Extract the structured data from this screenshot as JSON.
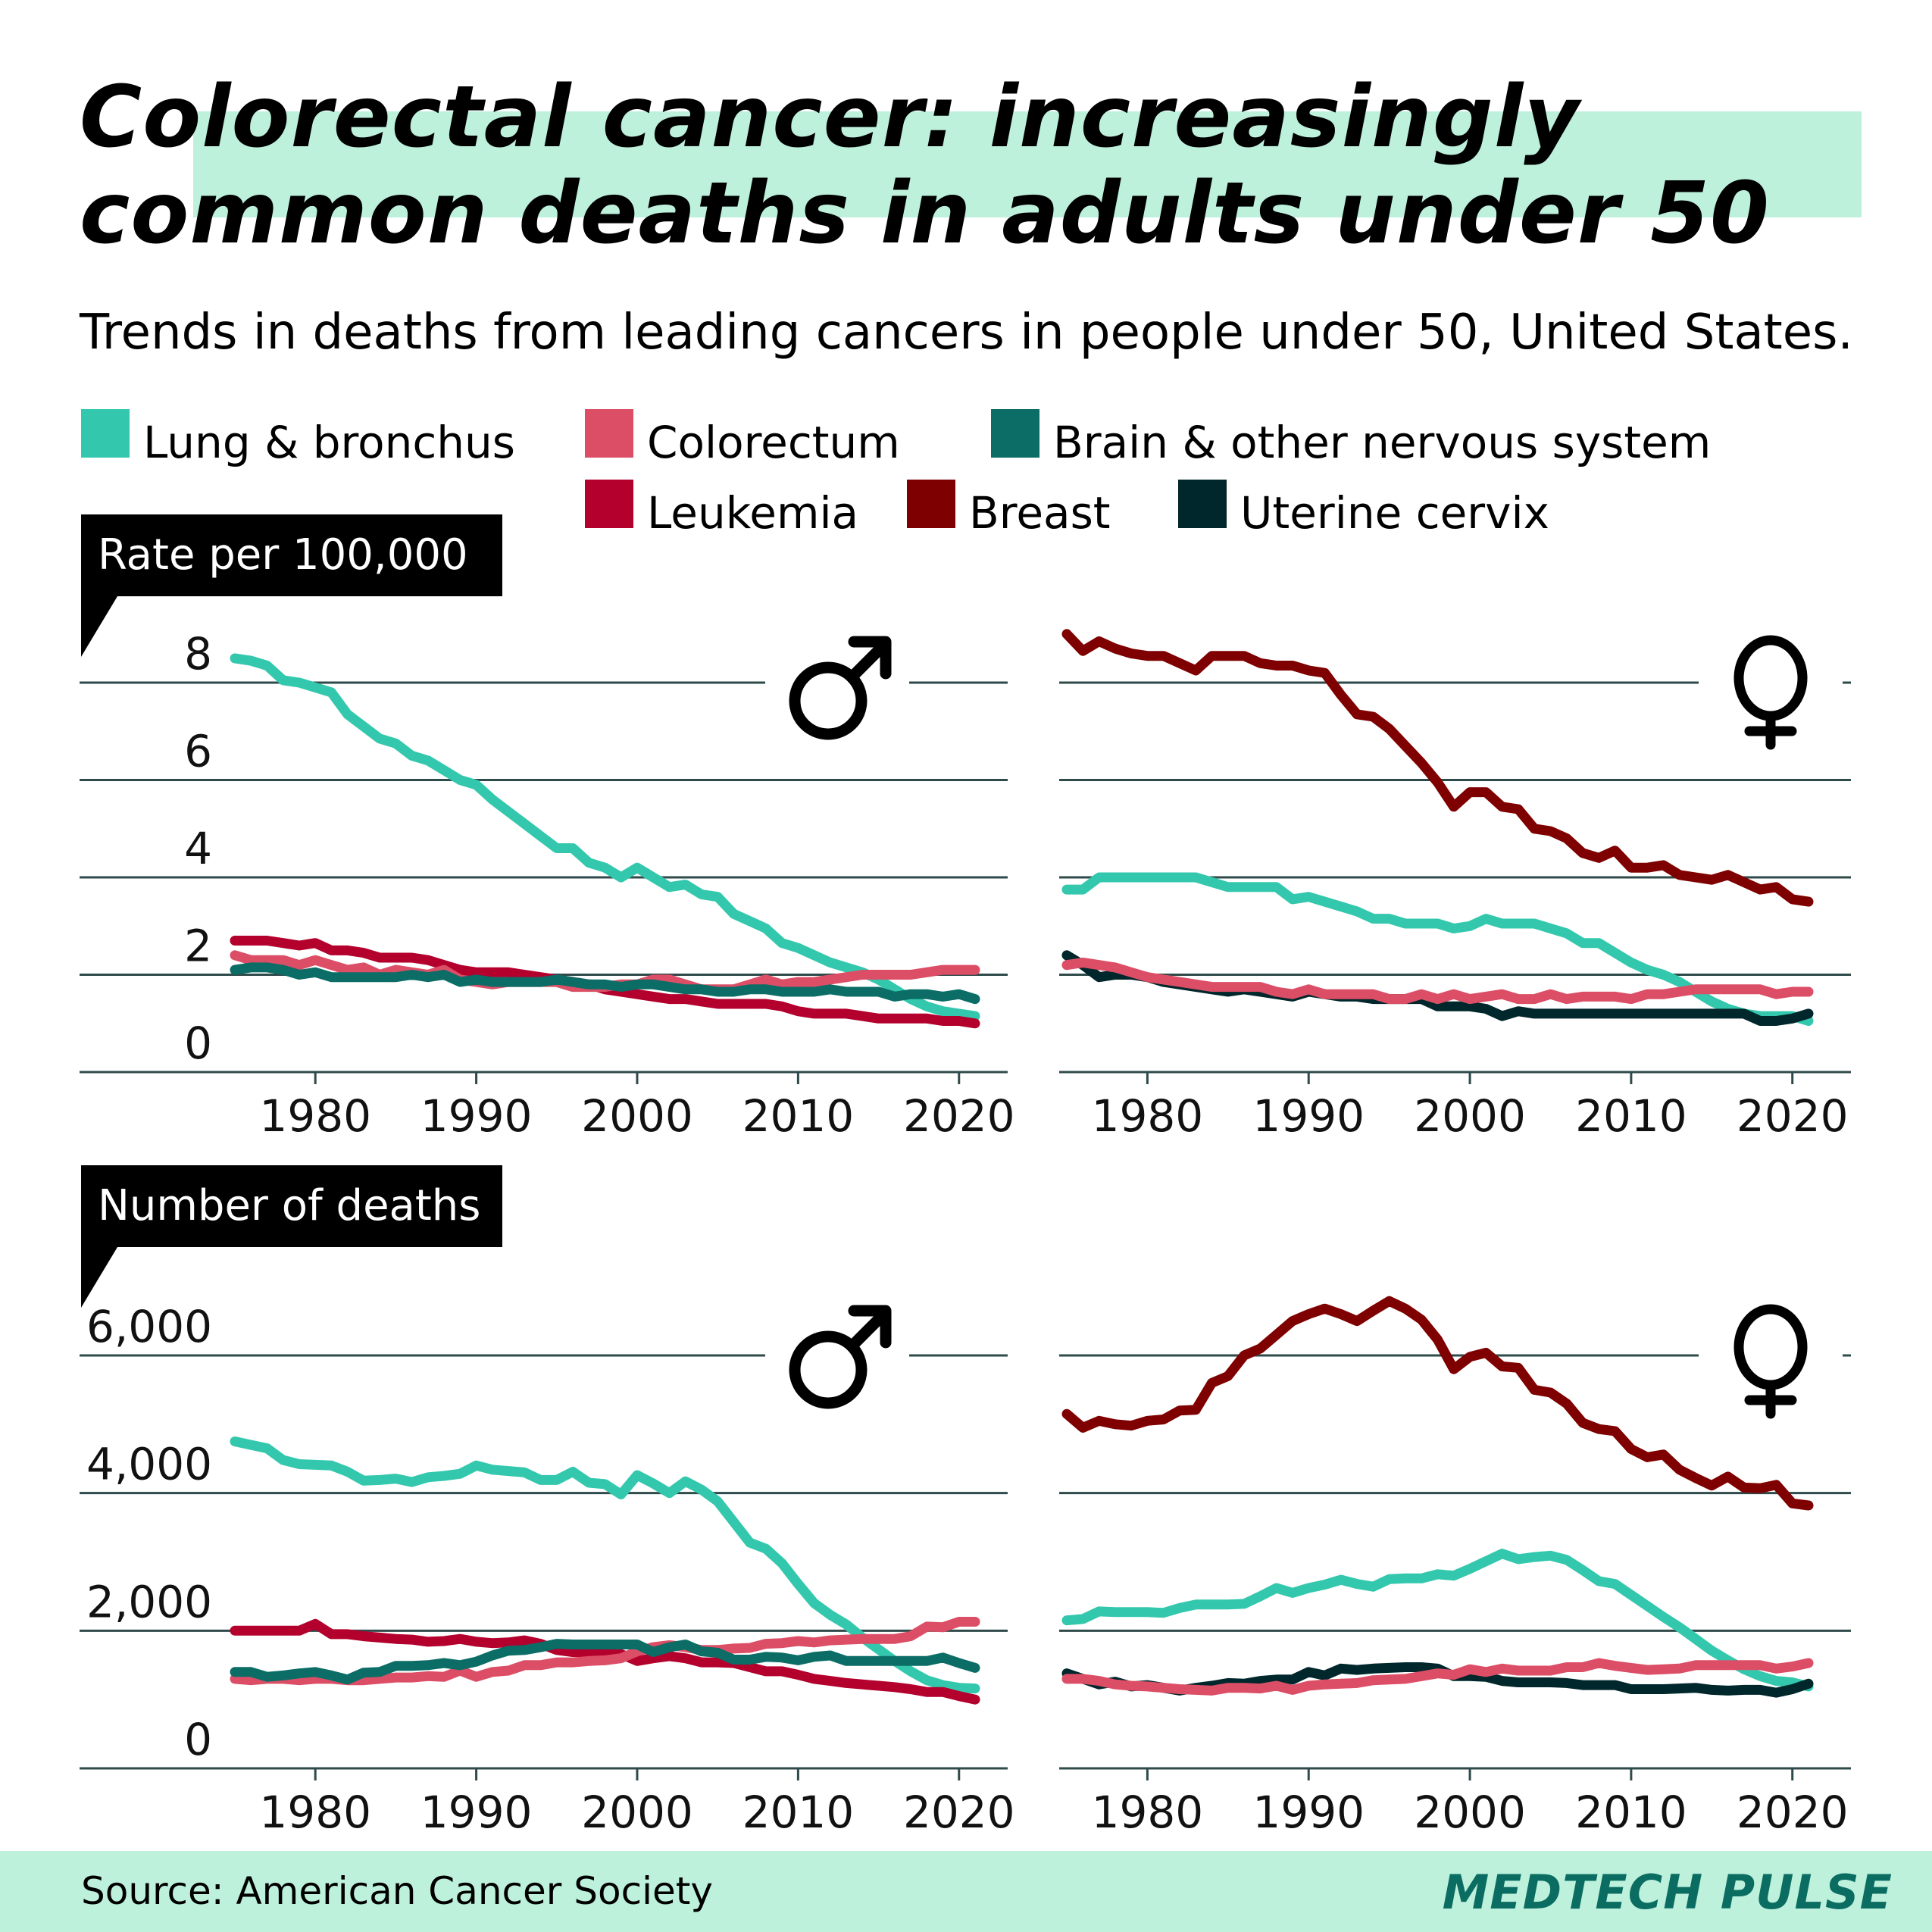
{
  "header": {
    "title_line1": "Colorectal cancer: increasingly",
    "title_line2": "common deaths in adults under 50",
    "subtitle": "Trends in deaths from leading cancers in people under 50, United States."
  },
  "legend": [
    {
      "label": "Lung & bronchus",
      "color": "#33c8ad"
    },
    {
      "label": "Colorectum",
      "color": "#dc4e66"
    },
    {
      "label": "Brain & other nervous system",
      "color": "#0b6d66"
    },
    {
      "label": "Leukemia",
      "color": "#b3002d"
    },
    {
      "label": "Breast",
      "color": "#7f0000"
    },
    {
      "label": "Uterine cervix",
      "color": "#00272b"
    }
  ],
  "colors": {
    "accent_band": "#bdf1dc",
    "gridline": "#2f4a4a",
    "brand": "#0b6d62"
  },
  "footer": {
    "source": "Source: American Cancer Society",
    "brand": "MEDTECH PULSE"
  },
  "panels": {
    "rate_label": "Rate per 100,000",
    "deaths_label": "Number of deaths",
    "male_symbol": "♂",
    "female_symbol": "♀"
  },
  "chart_data": [
    {
      "type": "line",
      "title": "Rate per 100,000 — Men",
      "ylabel": "Rate per 100,000",
      "x_ticks": [
        1980,
        1990,
        2000,
        2010,
        2020
      ],
      "y_ticks": [
        0,
        2,
        4,
        6,
        8
      ],
      "y_tick_labels": [
        "0",
        "2",
        "4",
        "6",
        "8"
      ],
      "xlim": [
        1975,
        2021
      ],
      "ylim": [
        0,
        8
      ],
      "grid": true,
      "start_year": 1975,
      "series": [
        {
          "name": "Lung & bronchus",
          "color": "#33c8ad",
          "values": [
            8.5,
            8.45,
            8.35,
            8.05,
            8.0,
            7.9,
            7.8,
            7.35,
            7.1,
            6.85,
            6.75,
            6.5,
            6.4,
            6.2,
            6.0,
            5.9,
            5.6,
            5.35,
            5.1,
            4.85,
            4.6,
            4.6,
            4.3,
            4.2,
            4.0,
            4.2,
            4.0,
            3.8,
            3.85,
            3.65,
            3.6,
            3.25,
            3.1,
            2.95,
            2.65,
            2.55,
            2.4,
            2.25,
            2.15,
            2.05,
            1.9,
            1.7,
            1.5,
            1.35,
            1.25,
            1.2,
            1.15
          ]
        },
        {
          "name": "Leukemia",
          "color": "#b3002d",
          "values": [
            2.7,
            2.7,
            2.7,
            2.65,
            2.6,
            2.65,
            2.5,
            2.5,
            2.45,
            2.35,
            2.35,
            2.35,
            2.3,
            2.2,
            2.1,
            2.05,
            2.05,
            2.05,
            2.0,
            1.95,
            1.9,
            1.85,
            1.8,
            1.7,
            1.65,
            1.6,
            1.55,
            1.5,
            1.5,
            1.45,
            1.4,
            1.4,
            1.4,
            1.4,
            1.35,
            1.25,
            1.2,
            1.2,
            1.2,
            1.15,
            1.1,
            1.1,
            1.1,
            1.1,
            1.05,
            1.05,
            1.0
          ]
        },
        {
          "name": "Colorectum",
          "color": "#dc4e66",
          "values": [
            2.4,
            2.3,
            2.3,
            2.3,
            2.2,
            2.3,
            2.2,
            2.1,
            2.15,
            2.0,
            2.1,
            2.05,
            2.0,
            2.1,
            1.9,
            1.85,
            1.8,
            1.85,
            1.85,
            1.85,
            1.85,
            1.75,
            1.75,
            1.75,
            1.8,
            1.8,
            1.9,
            1.9,
            1.8,
            1.7,
            1.7,
            1.7,
            1.8,
            1.9,
            1.8,
            1.85,
            1.85,
            1.9,
            1.95,
            2.0,
            2.0,
            2.0,
            2.0,
            2.05,
            2.1,
            2.1,
            2.1
          ]
        },
        {
          "name": "Brain & other nervous system",
          "color": "#0b6d66",
          "values": [
            2.1,
            2.15,
            2.15,
            2.1,
            2.0,
            2.05,
            1.95,
            1.95,
            1.95,
            1.95,
            1.95,
            2.0,
            1.95,
            2.0,
            1.85,
            1.9,
            1.85,
            1.85,
            1.85,
            1.85,
            1.9,
            1.85,
            1.8,
            1.8,
            1.75,
            1.8,
            1.8,
            1.75,
            1.7,
            1.7,
            1.65,
            1.65,
            1.7,
            1.7,
            1.65,
            1.65,
            1.65,
            1.7,
            1.65,
            1.65,
            1.65,
            1.55,
            1.6,
            1.6,
            1.55,
            1.6,
            1.5
          ]
        }
      ]
    },
    {
      "type": "line",
      "title": "Rate per 100,000 — Women",
      "ylabel": "Rate per 100,000",
      "x_ticks": [
        1980,
        1990,
        2000,
        2010,
        2020
      ],
      "y_ticks": [
        0,
        2,
        4,
        6,
        8
      ],
      "xlim": [
        1975,
        2021
      ],
      "ylim": [
        0,
        8
      ],
      "grid": true,
      "start_year": 1975,
      "series": [
        {
          "name": "Breast",
          "color": "#7f0000",
          "values": [
            9.0,
            8.65,
            8.85,
            8.7,
            8.6,
            8.55,
            8.55,
            8.4,
            8.25,
            8.55,
            8.55,
            8.55,
            8.4,
            8.35,
            8.35,
            8.25,
            8.2,
            7.75,
            7.35,
            7.3,
            7.05,
            6.7,
            6.35,
            5.95,
            5.45,
            5.75,
            5.75,
            5.45,
            5.4,
            5.0,
            4.95,
            4.8,
            4.5,
            4.4,
            4.55,
            4.2,
            4.2,
            4.25,
            4.05,
            4.0,
            3.95,
            4.05,
            3.9,
            3.75,
            3.8,
            3.55,
            3.5
          ]
        },
        {
          "name": "Lung & bronchus",
          "color": "#33c8ad",
          "values": [
            3.75,
            3.75,
            4.0,
            4.0,
            4.0,
            4.0,
            4.0,
            4.0,
            4.0,
            3.9,
            3.8,
            3.8,
            3.8,
            3.8,
            3.55,
            3.6,
            3.5,
            3.4,
            3.3,
            3.15,
            3.15,
            3.05,
            3.05,
            3.05,
            2.95,
            3.0,
            3.15,
            3.05,
            3.05,
            3.05,
            2.95,
            2.85,
            2.65,
            2.65,
            2.45,
            2.25,
            2.1,
            2.0,
            1.85,
            1.65,
            1.45,
            1.3,
            1.2,
            1.15,
            1.15,
            1.15,
            1.05
          ]
        },
        {
          "name": "Uterine cervix",
          "color": "#00272b",
          "values": [
            2.4,
            2.2,
            1.95,
            2.0,
            2.0,
            1.95,
            1.85,
            1.8,
            1.75,
            1.7,
            1.65,
            1.7,
            1.65,
            1.6,
            1.55,
            1.65,
            1.6,
            1.55,
            1.55,
            1.5,
            1.5,
            1.5,
            1.5,
            1.35,
            1.35,
            1.35,
            1.3,
            1.15,
            1.25,
            1.2,
            1.2,
            1.2,
            1.2,
            1.2,
            1.2,
            1.2,
            1.2,
            1.2,
            1.2,
            1.2,
            1.2,
            1.2,
            1.2,
            1.05,
            1.05,
            1.1,
            1.2
          ]
        },
        {
          "name": "Colorectum",
          "color": "#dc4e66",
          "values": [
            2.2,
            2.25,
            2.2,
            2.15,
            2.05,
            1.95,
            1.9,
            1.85,
            1.8,
            1.75,
            1.75,
            1.75,
            1.75,
            1.65,
            1.6,
            1.7,
            1.6,
            1.6,
            1.6,
            1.6,
            1.5,
            1.5,
            1.6,
            1.5,
            1.6,
            1.5,
            1.55,
            1.6,
            1.5,
            1.5,
            1.6,
            1.5,
            1.55,
            1.55,
            1.55,
            1.5,
            1.6,
            1.6,
            1.65,
            1.7,
            1.7,
            1.7,
            1.7,
            1.7,
            1.6,
            1.65,
            1.65
          ]
        }
      ]
    },
    {
      "type": "line",
      "title": "Number of deaths — Men",
      "ylabel": "Number of deaths",
      "x_ticks": [
        1980,
        1990,
        2000,
        2010,
        2020
      ],
      "y_ticks": [
        0,
        2000,
        4000,
        6000
      ],
      "y_tick_labels": [
        "0",
        "2,000",
        "4,000",
        "6,000"
      ],
      "xlim": [
        1975,
        2021
      ],
      "ylim": [
        0,
        6000
      ],
      "grid": true,
      "start_year": 1975,
      "series": [
        {
          "name": "Lung & bronchus",
          "color": "#33c8ad",
          "values": [
            4750,
            4700,
            4650,
            4480,
            4420,
            4410,
            4400,
            4310,
            4180,
            4190,
            4210,
            4160,
            4230,
            4250,
            4280,
            4400,
            4340,
            4320,
            4300,
            4190,
            4190,
            4310,
            4150,
            4130,
            3980,
            4260,
            4140,
            4000,
            4170,
            4050,
            3880,
            3580,
            3280,
            3190,
            2980,
            2680,
            2400,
            2230,
            2090,
            1900,
            1730,
            1560,
            1410,
            1280,
            1210,
            1170,
            1160
          ]
        },
        {
          "name": "Leukemia",
          "color": "#b3002d",
          "values": [
            2000,
            2000,
            2000,
            2000,
            2000,
            2100,
            1950,
            1950,
            1920,
            1900,
            1880,
            1870,
            1840,
            1850,
            1880,
            1840,
            1820,
            1830,
            1860,
            1810,
            1720,
            1690,
            1690,
            1690,
            1660,
            1560,
            1600,
            1630,
            1600,
            1540,
            1540,
            1530,
            1470,
            1410,
            1410,
            1360,
            1300,
            1270,
            1240,
            1220,
            1200,
            1180,
            1150,
            1110,
            1110,
            1050,
            1000
          ]
        },
        {
          "name": "Colorectum",
          "color": "#dc4e66",
          "values": [
            1300,
            1280,
            1300,
            1300,
            1280,
            1300,
            1300,
            1280,
            1280,
            1300,
            1320,
            1320,
            1340,
            1330,
            1420,
            1330,
            1400,
            1420,
            1500,
            1500,
            1540,
            1540,
            1560,
            1570,
            1600,
            1700,
            1760,
            1790,
            1760,
            1720,
            1720,
            1740,
            1750,
            1810,
            1820,
            1850,
            1830,
            1860,
            1870,
            1880,
            1880,
            1880,
            1920,
            2060,
            2050,
            2130,
            2130
          ]
        },
        {
          "name": "Brain & other nervous system",
          "color": "#0b6d66",
          "values": [
            1400,
            1400,
            1330,
            1350,
            1380,
            1400,
            1350,
            1290,
            1390,
            1400,
            1490,
            1490,
            1500,
            1530,
            1500,
            1550,
            1640,
            1710,
            1720,
            1760,
            1810,
            1800,
            1800,
            1800,
            1800,
            1800,
            1690,
            1760,
            1800,
            1700,
            1680,
            1580,
            1580,
            1620,
            1610,
            1570,
            1620,
            1640,
            1560,
            1560,
            1560,
            1560,
            1560,
            1560,
            1610,
            1530,
            1460
          ]
        }
      ]
    },
    {
      "type": "line",
      "title": "Number of deaths — Women",
      "ylabel": "Number of deaths",
      "x_ticks": [
        1980,
        1990,
        2000,
        2010,
        2020
      ],
      "y_ticks": [
        0,
        2000,
        4000,
        6000
      ],
      "xlim": [
        1975,
        2021
      ],
      "ylim": [
        0,
        6000
      ],
      "grid": true,
      "start_year": 1975,
      "series": [
        {
          "name": "Breast",
          "color": "#7f0000",
          "values": [
            5150,
            4950,
            5050,
            5000,
            4980,
            5050,
            5070,
            5200,
            5210,
            5600,
            5700,
            6000,
            6100,
            6300,
            6500,
            6600,
            6680,
            6600,
            6500,
            6650,
            6790,
            6680,
            6520,
            6230,
            5800,
            5980,
            6040,
            5840,
            5820,
            5500,
            5460,
            5300,
            5020,
            4930,
            4900,
            4640,
            4520,
            4560,
            4340,
            4220,
            4110,
            4240,
            4080,
            4070,
            4120,
            3850,
            3820
          ]
        },
        {
          "name": "Lung & bronchus",
          "color": "#33c8ad",
          "values": [
            2150,
            2170,
            2280,
            2270,
            2270,
            2270,
            2260,
            2330,
            2380,
            2380,
            2380,
            2390,
            2500,
            2620,
            2550,
            2620,
            2670,
            2740,
            2680,
            2640,
            2750,
            2760,
            2760,
            2820,
            2800,
            2900,
            3010,
            3120,
            3040,
            3070,
            3090,
            3030,
            2880,
            2720,
            2680,
            2520,
            2360,
            2200,
            2050,
            1880,
            1710,
            1570,
            1440,
            1340,
            1270,
            1250,
            1190
          ]
        },
        {
          "name": "Uterine cervix",
          "color": "#00272b",
          "values": [
            1380,
            1300,
            1220,
            1260,
            1190,
            1210,
            1170,
            1130,
            1170,
            1200,
            1240,
            1230,
            1270,
            1290,
            1290,
            1400,
            1350,
            1450,
            1430,
            1450,
            1460,
            1470,
            1470,
            1450,
            1340,
            1340,
            1330,
            1270,
            1250,
            1250,
            1250,
            1240,
            1210,
            1210,
            1210,
            1150,
            1150,
            1150,
            1160,
            1170,
            1140,
            1130,
            1140,
            1140,
            1100,
            1150,
            1230
          ]
        },
        {
          "name": "Colorectum",
          "color": "#dc4e66",
          "values": [
            1300,
            1300,
            1270,
            1220,
            1200,
            1190,
            1170,
            1150,
            1140,
            1130,
            1170,
            1170,
            1160,
            1200,
            1140,
            1200,
            1220,
            1230,
            1240,
            1280,
            1290,
            1300,
            1340,
            1380,
            1360,
            1440,
            1400,
            1450,
            1420,
            1420,
            1420,
            1470,
            1470,
            1530,
            1490,
            1460,
            1430,
            1440,
            1450,
            1500,
            1500,
            1500,
            1500,
            1500,
            1450,
            1480,
            1530
          ]
        }
      ]
    }
  ]
}
